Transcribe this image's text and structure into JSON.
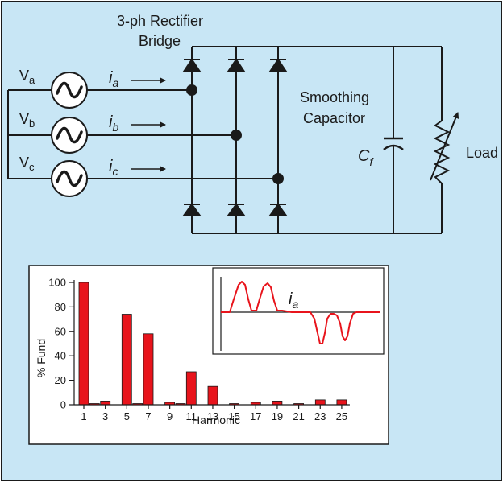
{
  "colors": {
    "background": "#c8e6f5",
    "line": "#1a1a1a",
    "bar": "#e8141c",
    "waveform": "#e8141c"
  },
  "labels": {
    "bridge_line1": "3-ph Rectifier",
    "bridge_line2": "Bridge",
    "va_main": "V",
    "va_sub": "a",
    "vb_main": "V",
    "vb_sub": "b",
    "vc_main": "V",
    "vc_sub": "c",
    "ia_main": "i",
    "ia_sub": "a",
    "ib_main": "i",
    "ib_sub": "b",
    "ic_main": "i",
    "ic_sub": "c",
    "smoothing_line1": "Smoothing",
    "smoothing_line2": "Capacitor",
    "cf_main": "C",
    "cf_sub": "f",
    "load": "Load",
    "wave_main": "i",
    "wave_sub": "a"
  },
  "chart_data": {
    "type": "bar",
    "xlabel": "Harmonic",
    "ylabel": "% Fund",
    "ylim": [
      0,
      100
    ],
    "y_ticks": [
      "0",
      "20",
      "40",
      "60",
      "80",
      "100"
    ],
    "x_ticks": [
      "1",
      "3",
      "5",
      "7",
      "9",
      "11",
      "13",
      "15",
      "17",
      "19",
      "21",
      "23",
      "25"
    ],
    "categories": [
      1,
      2,
      3,
      4,
      5,
      6,
      7,
      8,
      9,
      10,
      11,
      12,
      13,
      14,
      15,
      16,
      17,
      18,
      19,
      20,
      21,
      22,
      23,
      24,
      25
    ],
    "values": [
      100,
      1,
      3,
      0,
      74,
      1,
      58,
      0,
      2,
      1,
      27,
      0,
      15,
      0,
      1,
      0,
      2,
      0,
      3,
      0,
      1,
      0,
      4,
      0,
      4
    ]
  }
}
